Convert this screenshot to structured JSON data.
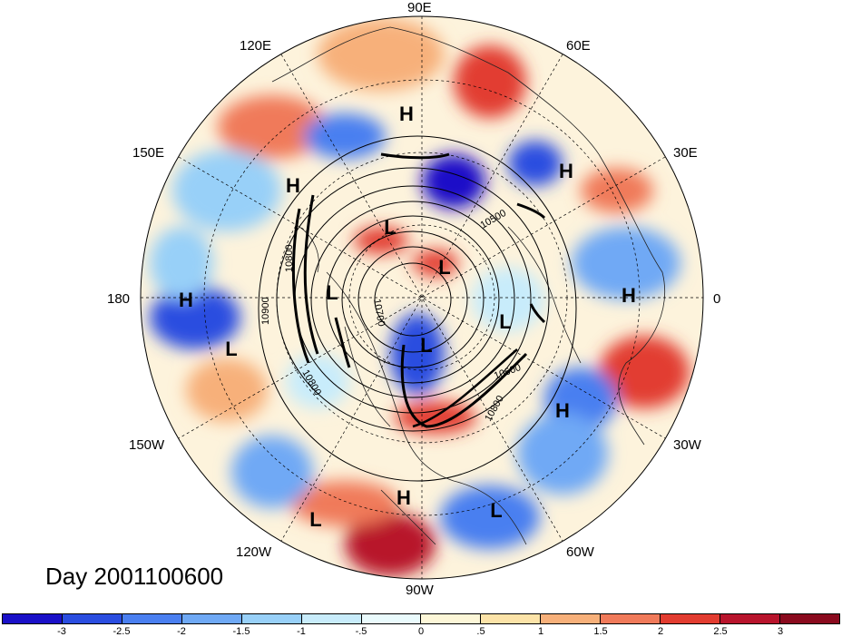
{
  "title": "Day 2001100600",
  "longitude_labels": {
    "e90": "90E",
    "e60": "60E",
    "e30": "30E",
    "e0": "0",
    "w30": "30W",
    "w60": "60W",
    "w90": "90W",
    "w120": "120W",
    "w150": "150W",
    "d180": "180",
    "e150": "150E",
    "e120": "120E"
  },
  "pressure_centers": [
    {
      "label": "H"
    },
    {
      "label": "H"
    },
    {
      "label": "H"
    },
    {
      "label": "H"
    },
    {
      "label": "H"
    },
    {
      "label": "H"
    },
    {
      "label": "H"
    },
    {
      "label": "L"
    },
    {
      "label": "L"
    },
    {
      "label": "L"
    },
    {
      "label": "L"
    },
    {
      "label": "L"
    },
    {
      "label": "L"
    },
    {
      "label": "L"
    },
    {
      "label": "L"
    }
  ],
  "contour_labels": [
    "10500",
    "10800",
    "10900",
    "10600",
    "10800",
    "10800",
    "10700"
  ],
  "colorbar": {
    "ticks": [
      "-3",
      "-2.5",
      "-2",
      "-1.5",
      "-1",
      "-.5",
      "0",
      ".5",
      "1",
      "1.5",
      "2",
      "2.5",
      "3"
    ],
    "colors": [
      "#1a10c8",
      "#2a4de0",
      "#4a7ff0",
      "#6fa9f5",
      "#98d0f8",
      "#c8ecfb",
      "#eafbfd",
      "#fdf7d8",
      "#fce3a8",
      "#f7b07a",
      "#f07a5a",
      "#e23c30",
      "#b8142c",
      "#8a0a1e"
    ]
  }
}
